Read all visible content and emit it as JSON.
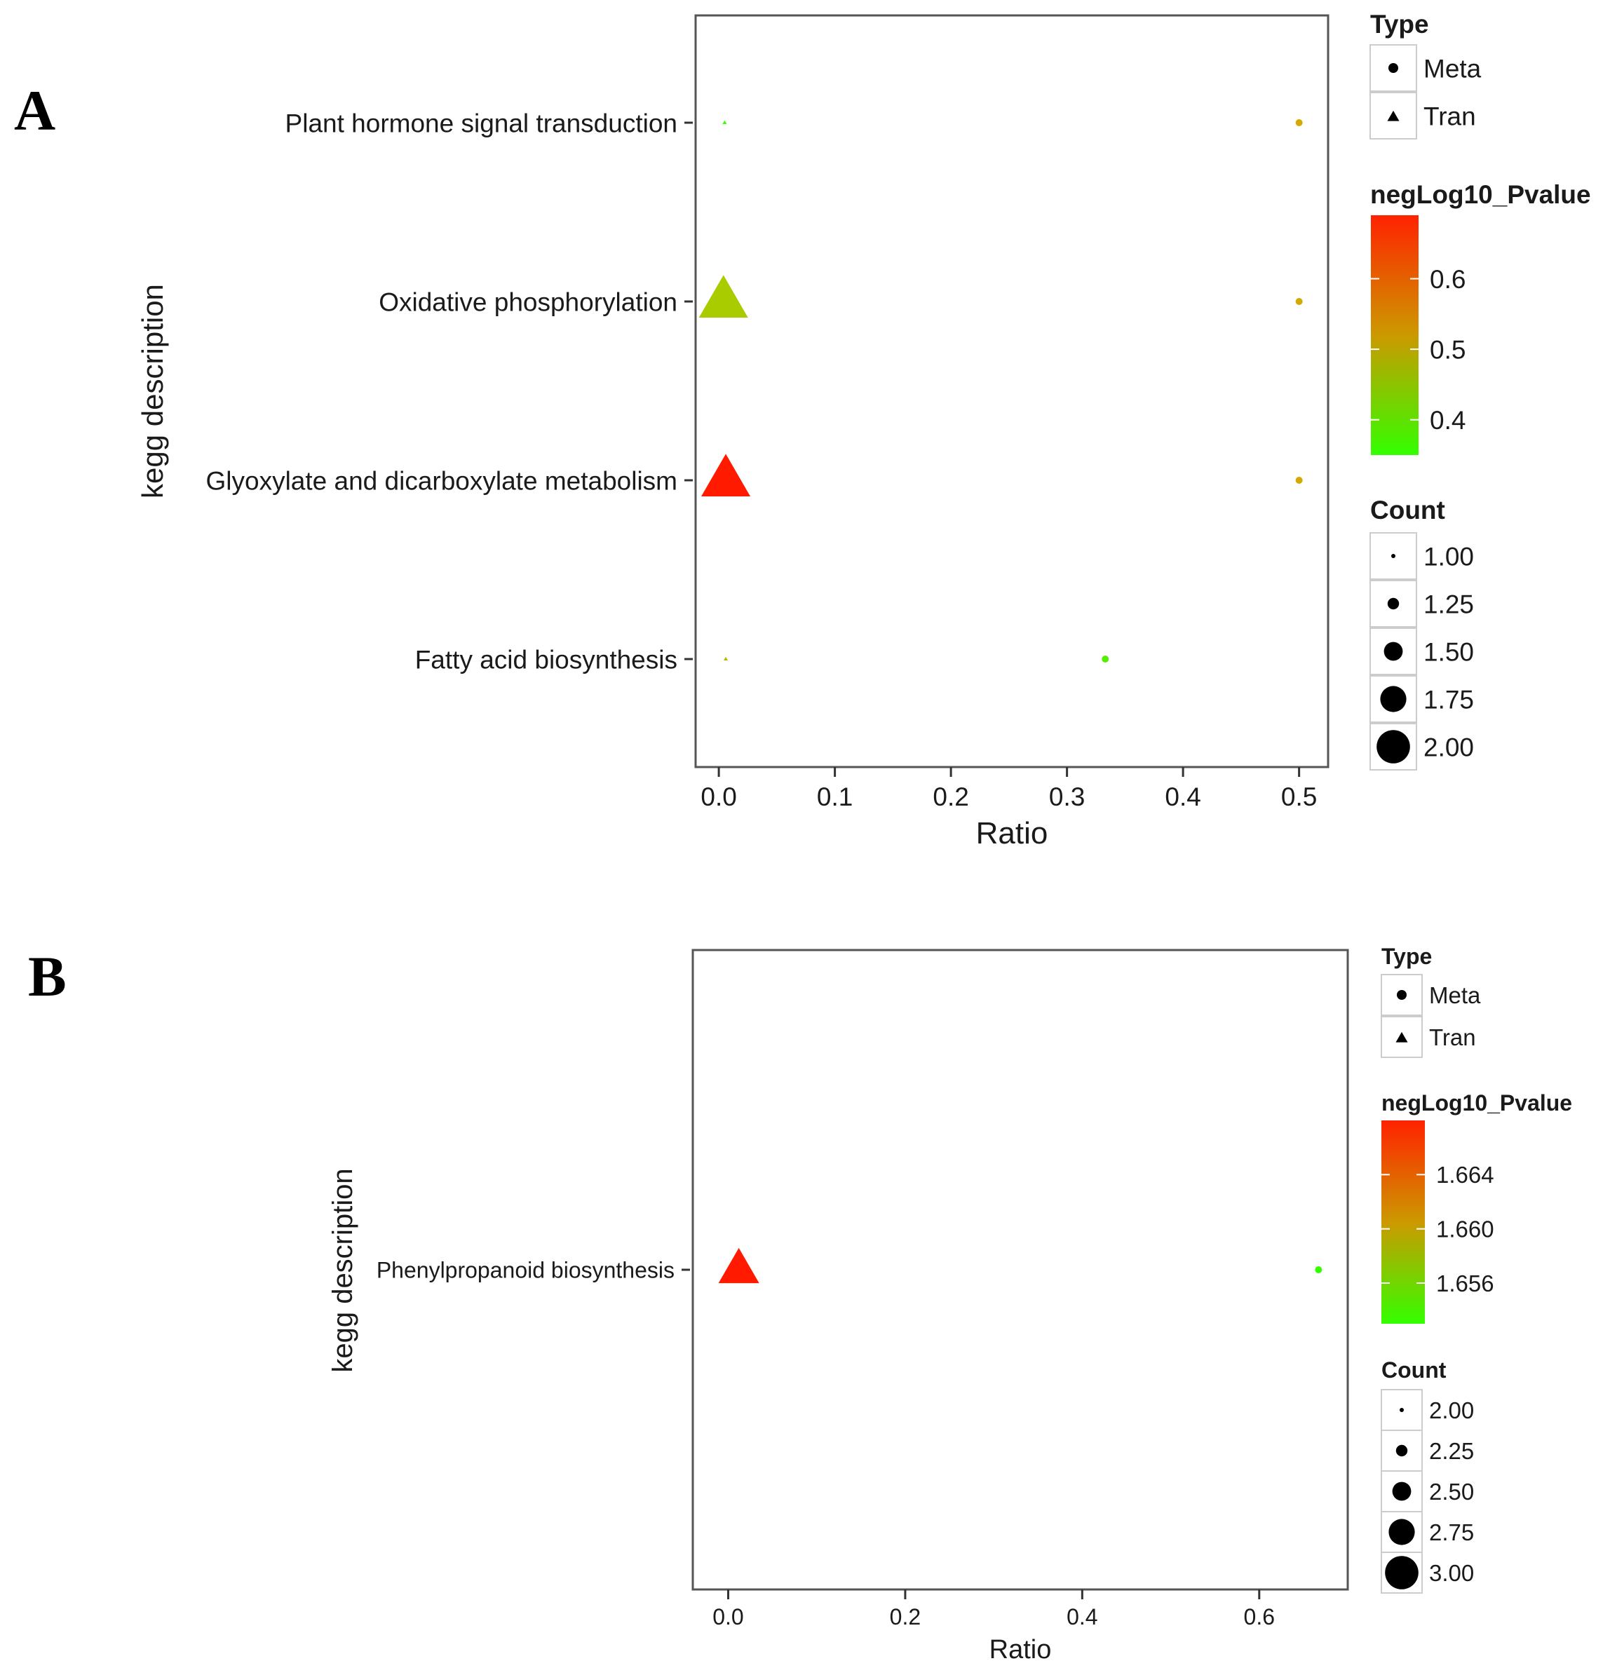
{
  "chart_data": [
    {
      "panel_label": "A",
      "type": "scatter",
      "xlabel": "Ratio",
      "ylabel": "kegg description",
      "xlim": [
        -0.02,
        0.525
      ],
      "xticks": [
        0.0,
        0.1,
        0.2,
        0.3,
        0.4,
        0.5
      ],
      "xtick_labels": [
        "0.0",
        "0.1",
        "0.2",
        "0.3",
        "0.4",
        "0.5"
      ],
      "categories": [
        "Plant hormone signal transduction",
        "Oxidative phosphorylation",
        "Glyoxylate and dicarboxylate metabolism",
        "Fatty acid biosynthesis"
      ],
      "points": [
        {
          "category": "Plant hormone signal transduction",
          "x": 0.005,
          "type": "Tran",
          "count": 1.0,
          "negLog10_Pvalue": 0.35,
          "color": "#33ff00"
        },
        {
          "category": "Plant hormone signal transduction",
          "x": 0.5,
          "type": "Meta",
          "count": 1.0,
          "negLog10_Pvalue": 0.55,
          "color": "#d4a900"
        },
        {
          "category": "Oxidative phosphorylation",
          "x": 0.004,
          "type": "Tran",
          "count": 2.0,
          "negLog10_Pvalue": 0.46,
          "color": "#a8cc00"
        },
        {
          "category": "Oxidative phosphorylation",
          "x": 0.5,
          "type": "Meta",
          "count": 1.0,
          "negLog10_Pvalue": 0.55,
          "color": "#d4a900"
        },
        {
          "category": "Glyoxylate and dicarboxylate metabolism",
          "x": 0.006,
          "type": "Tran",
          "count": 2.0,
          "negLog10_Pvalue": 0.69,
          "color": "#ff1a00"
        },
        {
          "category": "Glyoxylate and dicarboxylate metabolism",
          "x": 0.5,
          "type": "Meta",
          "count": 1.0,
          "negLog10_Pvalue": 0.55,
          "color": "#d4a900"
        },
        {
          "category": "Fatty acid biosynthesis",
          "x": 0.006,
          "type": "Tran",
          "count": 1.0,
          "negLog10_Pvalue": 0.5,
          "color": "#b8b800"
        },
        {
          "category": "Fatty acid biosynthesis",
          "x": 0.333,
          "type": "Meta",
          "count": 1.0,
          "negLog10_Pvalue": 0.38,
          "color": "#55ee00"
        }
      ],
      "legend_type": {
        "title": "Type",
        "entries": [
          "Meta",
          "Tran"
        ]
      },
      "legend_color": {
        "title": "negLog10_Pvalue",
        "range": [
          0.35,
          0.69
        ],
        "ticks": [
          0.6,
          0.5,
          0.4
        ],
        "tick_labels": [
          "0.6",
          "0.5",
          "0.4"
        ],
        "colors": [
          "#33ff00",
          "#cc9900",
          "#ff2200"
        ]
      },
      "legend_count": {
        "title": "Count",
        "values": [
          1.0,
          1.25,
          1.5,
          1.75,
          2.0
        ],
        "labels": [
          "1.00",
          "1.25",
          "1.50",
          "1.75",
          "2.00"
        ]
      }
    },
    {
      "panel_label": "B",
      "type": "scatter",
      "xlabel": "Ratio",
      "ylabel": "kegg description",
      "xlim": [
        -0.04,
        0.7
      ],
      "xticks": [
        0.0,
        0.2,
        0.4,
        0.6
      ],
      "xtick_labels": [
        "0.0",
        "0.2",
        "0.4",
        "0.6"
      ],
      "categories": [
        "Phenylpropanoid biosynthesis"
      ],
      "points": [
        {
          "category": "Phenylpropanoid biosynthesis",
          "x": 0.012,
          "type": "Tran",
          "count": 3.0,
          "negLog10_Pvalue": 1.668,
          "color": "#ff1a00"
        },
        {
          "category": "Phenylpropanoid biosynthesis",
          "x": 0.667,
          "type": "Meta",
          "count": 2.0,
          "negLog10_Pvalue": 1.653,
          "color": "#33ff00"
        }
      ],
      "legend_type": {
        "title": "Type",
        "entries": [
          "Meta",
          "Tran"
        ]
      },
      "legend_color": {
        "title": "negLog10_Pvalue",
        "range": [
          1.653,
          1.668
        ],
        "ticks": [
          1.664,
          1.66,
          1.656
        ],
        "tick_labels": [
          "1.664",
          "1.660",
          "1.656"
        ],
        "colors": [
          "#33ff00",
          "#cc9900",
          "#ff2200"
        ]
      },
      "legend_count": {
        "title": "Count",
        "values": [
          2.0,
          2.25,
          2.5,
          2.75,
          3.0
        ],
        "labels": [
          "2.00",
          "2.25",
          "2.50",
          "2.75",
          "3.00"
        ]
      }
    }
  ]
}
